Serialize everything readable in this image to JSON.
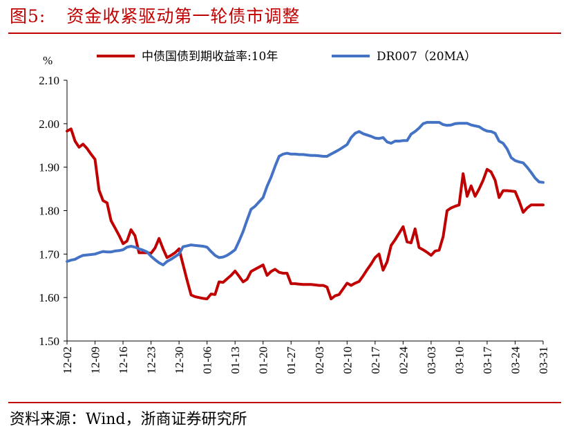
{
  "figure": {
    "label": "图5:",
    "title": "资金收紧驱动第一轮债市调整",
    "source": "资料来源：Wind，浙商证券研究所",
    "accent_color": "#c00000"
  },
  "chart_data": {
    "type": "line",
    "ylabel": "%",
    "ylim": [
      1.5,
      2.1
    ],
    "yticks": [
      "2.10",
      "2.00",
      "1.90",
      "1.80",
      "1.70",
      "1.60",
      "1.50"
    ],
    "xlim": [
      0,
      119
    ],
    "xticks": [
      "12-02",
      "12-09",
      "12-16",
      "12-23",
      "12-30",
      "01-06",
      "01-13",
      "01-20",
      "01-27",
      "02-03",
      "02-10",
      "02-17",
      "02-24",
      "03-03",
      "03-10",
      "03-17",
      "03-24",
      "03-31"
    ],
    "grid": false,
    "legend_position": "top",
    "series": [
      {
        "name": "中债国债到期收益率:10年",
        "color": "#c00000",
        "x": [
          0,
          1,
          2,
          3,
          4,
          5,
          6,
          7,
          8,
          9,
          10,
          11,
          12,
          13,
          14,
          15,
          16,
          17,
          18,
          19,
          20,
          21,
          22,
          23,
          24,
          25,
          26,
          27,
          28,
          29,
          30,
          31,
          32,
          33,
          34,
          35,
          36,
          37,
          38,
          39,
          40,
          41,
          42,
          43,
          44,
          45,
          46,
          47,
          48,
          49,
          50,
          51,
          52,
          53,
          54,
          55,
          56,
          57,
          58,
          59,
          60,
          61,
          62,
          63,
          64,
          65,
          66,
          67,
          68,
          69,
          70,
          71,
          72,
          73,
          74,
          75,
          76,
          77,
          78,
          79,
          80,
          81,
          82,
          83,
          84,
          85,
          86,
          87,
          88,
          89,
          90,
          91,
          92,
          93,
          94,
          95,
          96,
          97,
          98,
          99,
          100,
          101,
          102,
          103,
          104,
          105,
          106,
          107,
          108,
          109,
          110,
          111,
          112,
          113,
          114,
          115,
          116,
          117,
          118,
          119
        ],
        "values": [
          1.983,
          1.988,
          1.96,
          1.946,
          1.953,
          1.943,
          1.93,
          1.918,
          1.847,
          1.823,
          1.818,
          1.777,
          1.76,
          1.743,
          1.724,
          1.73,
          1.756,
          1.742,
          1.703,
          1.703,
          1.703,
          1.702,
          1.714,
          1.736,
          1.712,
          1.692,
          1.697,
          1.703,
          1.712,
          1.676,
          1.64,
          1.606,
          1.602,
          1.6,
          1.598,
          1.597,
          1.608,
          1.607,
          1.636,
          1.635,
          1.643,
          1.651,
          1.661,
          1.649,
          1.636,
          1.642,
          1.66,
          1.665,
          1.67,
          1.675,
          1.651,
          1.66,
          1.665,
          1.658,
          1.656,
          1.656,
          1.632,
          1.632,
          1.631,
          1.63,
          1.63,
          1.63,
          1.629,
          1.628,
          1.628,
          1.624,
          1.597,
          1.604,
          1.607,
          1.62,
          1.633,
          1.628,
          1.633,
          1.637,
          1.65,
          1.664,
          1.677,
          1.692,
          1.7,
          1.663,
          1.682,
          1.72,
          1.733,
          1.748,
          1.763,
          1.728,
          1.726,
          1.758,
          1.715,
          1.71,
          1.704,
          1.697,
          1.707,
          1.709,
          1.74,
          1.8,
          1.806,
          1.81,
          1.813,
          1.885,
          1.833,
          1.857,
          1.833,
          1.85,
          1.87,
          1.895,
          1.889,
          1.87,
          1.83,
          1.846,
          1.846,
          1.845,
          1.844,
          1.822,
          1.796,
          1.806,
          1.813,
          1.813,
          1.813,
          1.813
        ]
      },
      {
        "name": "DR007（20MA）",
        "color": "#4472c4",
        "x": [
          0,
          1,
          2,
          3,
          4,
          5,
          6,
          7,
          8,
          9,
          10,
          11,
          12,
          13,
          14,
          15,
          16,
          17,
          18,
          19,
          20,
          21,
          22,
          23,
          24,
          25,
          26,
          27,
          28,
          29,
          30,
          31,
          32,
          33,
          34,
          35,
          36,
          37,
          38,
          39,
          40,
          41,
          42,
          43,
          44,
          45,
          46,
          47,
          48,
          49,
          50,
          51,
          52,
          53,
          54,
          55,
          56,
          57,
          58,
          59,
          60,
          61,
          62,
          63,
          64,
          65,
          66,
          67,
          68,
          69,
          70,
          71,
          72,
          73,
          74,
          75,
          76,
          77,
          78,
          79,
          80,
          81,
          82,
          83,
          84,
          85,
          86,
          87,
          88,
          89,
          90,
          91,
          92,
          93,
          94,
          95,
          96,
          97,
          98,
          99,
          100,
          101,
          102,
          103,
          104,
          105,
          106,
          107,
          108,
          109,
          110,
          111,
          112,
          113,
          114,
          115,
          116,
          117,
          118,
          119
        ],
        "values": [
          1.683,
          1.686,
          1.688,
          1.693,
          1.697,
          1.698,
          1.699,
          1.7,
          1.703,
          1.706,
          1.705,
          1.705,
          1.707,
          1.708,
          1.71,
          1.716,
          1.718,
          1.716,
          1.712,
          1.709,
          1.705,
          1.695,
          1.687,
          1.68,
          1.675,
          1.683,
          1.688,
          1.694,
          1.7,
          1.717,
          1.719,
          1.721,
          1.72,
          1.719,
          1.718,
          1.716,
          1.706,
          1.697,
          1.692,
          1.693,
          1.697,
          1.703,
          1.71,
          1.73,
          1.752,
          1.778,
          1.803,
          1.81,
          1.82,
          1.83,
          1.856,
          1.877,
          1.902,
          1.925,
          1.93,
          1.932,
          1.93,
          1.93,
          1.929,
          1.929,
          1.928,
          1.927,
          1.927,
          1.926,
          1.925,
          1.925,
          1.93,
          1.935,
          1.94,
          1.946,
          1.952,
          1.968,
          1.978,
          1.982,
          1.977,
          1.974,
          1.971,
          1.967,
          1.966,
          1.968,
          1.958,
          1.955,
          1.96,
          1.96,
          1.961,
          1.961,
          1.976,
          1.982,
          1.99,
          2.0,
          2.003,
          2.003,
          2.003,
          2.003,
          1.998,
          1.996,
          1.997,
          2.0,
          2.001,
          2.001,
          2.001,
          1.997,
          1.995,
          1.993,
          1.987,
          1.983,
          1.982,
          1.978,
          1.96,
          1.955,
          1.942,
          1.922,
          1.915,
          1.912,
          1.91,
          1.9,
          1.888,
          1.875,
          1.866,
          1.865
        ]
      }
    ]
  }
}
